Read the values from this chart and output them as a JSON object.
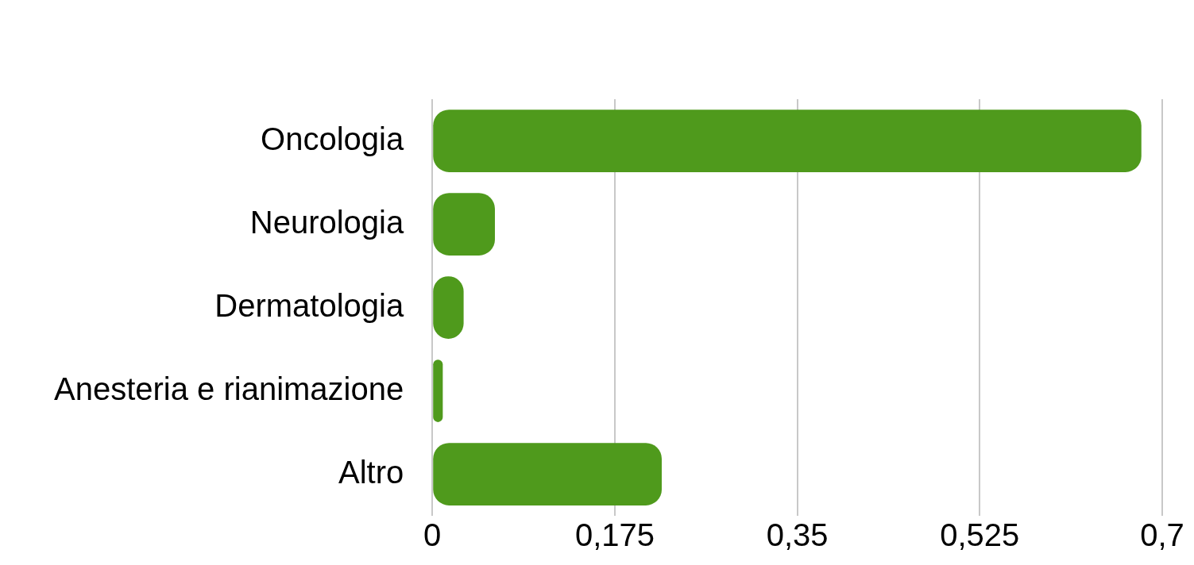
{
  "chart_data": {
    "type": "bar",
    "orientation": "horizontal",
    "categories": [
      "Oncologia",
      "Neurologia",
      "Dermatologia",
      "Anesteria e rianimazione",
      "Altro"
    ],
    "values": [
      0.68,
      0.06,
      0.03,
      0.01,
      0.22
    ],
    "color": "#4f9a1c",
    "xlim": [
      0,
      0.7
    ],
    "xticks": [
      0,
      {
        "value": 0.175,
        "label": "0,175"
      },
      {
        "value": 0.35,
        "label": "0,35"
      },
      {
        "value": 0.525,
        "label": "0,525"
      },
      {
        "value": 0.7,
        "label": "0,7"
      }
    ],
    "grid": "x",
    "legend": false
  }
}
